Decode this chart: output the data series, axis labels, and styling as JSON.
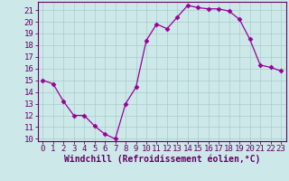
{
  "x": [
    0,
    1,
    2,
    3,
    4,
    5,
    6,
    7,
    8,
    9,
    10,
    11,
    12,
    13,
    14,
    15,
    16,
    17,
    18,
    19,
    20,
    21,
    22,
    23
  ],
  "y": [
    15.0,
    14.7,
    13.2,
    12.0,
    12.0,
    11.1,
    10.4,
    10.0,
    13.0,
    14.4,
    18.4,
    19.8,
    19.4,
    20.4,
    21.4,
    21.2,
    21.1,
    21.1,
    20.9,
    20.2,
    18.5,
    16.3,
    16.1,
    15.8
  ],
  "line_color": "#990099",
  "marker": "D",
  "marker_size": 2.5,
  "bg_color": "#cce8e8",
  "grid_color": "#aacccc",
  "xlabel": "Windchill (Refroidissement éolien,°C)",
  "ylim": [
    9.8,
    21.7
  ],
  "xlim": [
    -0.5,
    23.5
  ],
  "yticks": [
    10,
    11,
    12,
    13,
    14,
    15,
    16,
    17,
    18,
    19,
    20,
    21
  ],
  "xticks": [
    0,
    1,
    2,
    3,
    4,
    5,
    6,
    7,
    8,
    9,
    10,
    11,
    12,
    13,
    14,
    15,
    16,
    17,
    18,
    19,
    20,
    21,
    22,
    23
  ],
  "tick_color": "#660066",
  "label_color": "#660066",
  "spine_color": "#660066",
  "tick_fontsize": 6.5,
  "xlabel_fontsize": 7.0
}
